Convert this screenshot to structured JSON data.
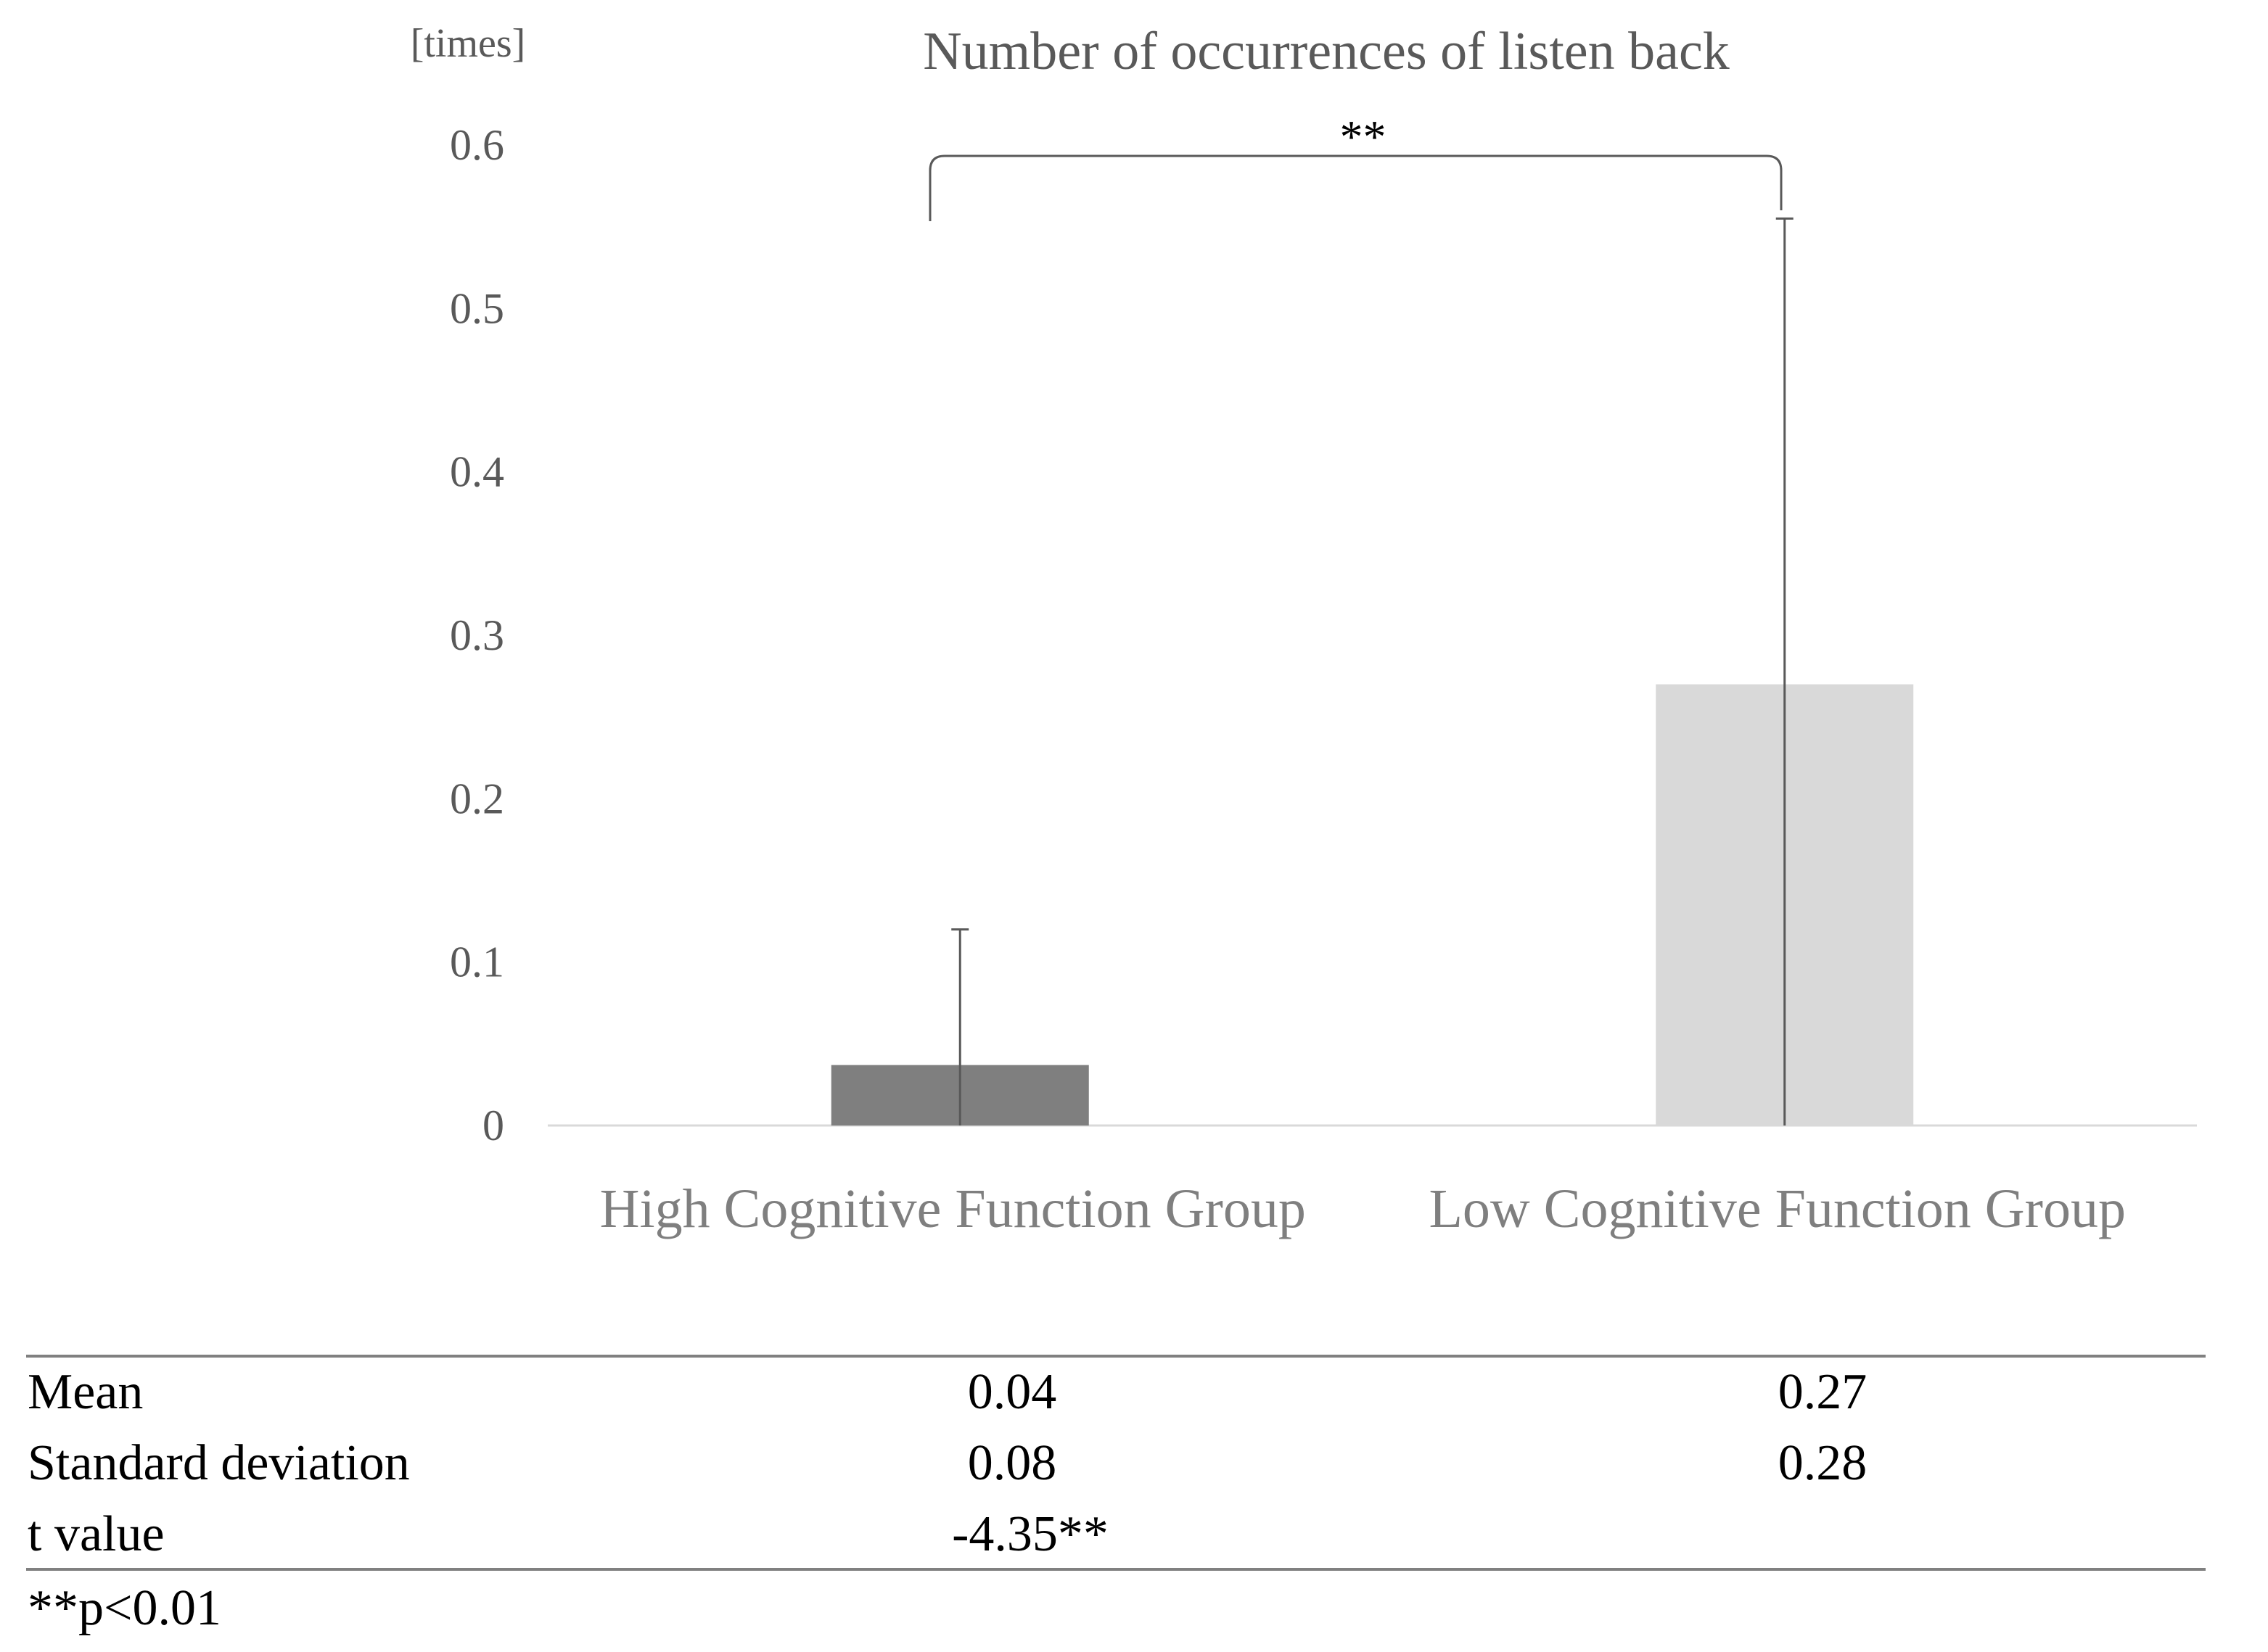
{
  "chart_data": {
    "type": "bar",
    "title": "Number of occurrences of listen back",
    "ylabel": "[times]",
    "xlabel": "",
    "categories": [
      "High Cognitive Function Group",
      "Low Cognitive Function Group"
    ],
    "values": [
      0.037,
      0.27
    ],
    "error_upper": [
      0.12,
      0.555
    ],
    "ylim": [
      0,
      0.6
    ],
    "yticks": [
      0,
      0.1,
      0.2,
      0.3,
      0.4,
      0.5,
      0.6
    ],
    "ytick_labels": [
      "0",
      "0.1",
      "0.2",
      "0.3",
      "0.4",
      "0.5",
      "0.6"
    ],
    "bar_colors": [
      "#7f7f7f",
      "#d9d9d9"
    ],
    "grid": false,
    "significance": {
      "label": "**",
      "between": [
        0,
        1
      ]
    }
  },
  "stats_table": {
    "rows": [
      {
        "label": "Mean",
        "values": [
          "0.04",
          "0.27"
        ]
      },
      {
        "label": "Standard deviation",
        "values": [
          "0.08",
          "0.28"
        ]
      },
      {
        "label": "t value",
        "values": [
          "-4.35**",
          ""
        ]
      }
    ],
    "footnote": "**p<0.01"
  },
  "colors": {
    "axis": "#d9d9d9",
    "text": "#595959",
    "category_text": "#7f7f7f",
    "table_rule": "#808080"
  }
}
